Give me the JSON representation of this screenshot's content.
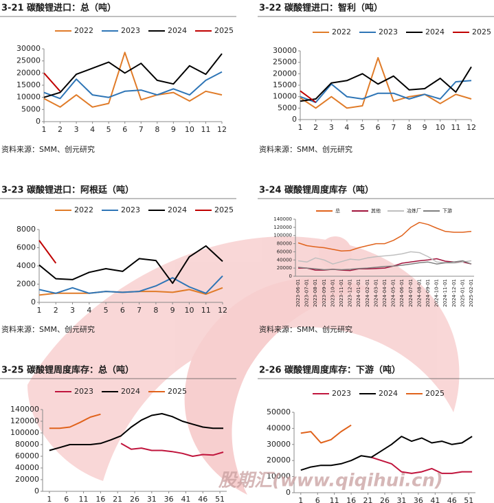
{
  "watermark": "股期汇(www.qiqihui.cn)",
  "chart_data": [
    {
      "type": "line",
      "title": "3-21 碳酸锂进口：总（吨）",
      "source": "资料来源：SMM、创元研究",
      "x": [
        1,
        2,
        3,
        4,
        5,
        6,
        7,
        8,
        9,
        10,
        11,
        12
      ],
      "xlim": [
        1,
        12
      ],
      "xticks": [
        1,
        2,
        3,
        4,
        5,
        6,
        7,
        8,
        9,
        10,
        11,
        12
      ],
      "ylim": [
        0,
        30000
      ],
      "yticks": [
        0,
        5000,
        10000,
        15000,
        20000,
        25000,
        30000
      ],
      "series": [
        {
          "name": "2022",
          "color": "#e07b28",
          "values": [
            9500,
            6000,
            11000,
            6000,
            7500,
            28500,
            9000,
            11000,
            12000,
            8500,
            12500,
            11000
          ]
        },
        {
          "name": "2023",
          "color": "#2e75b6",
          "values": [
            12000,
            9500,
            17500,
            11000,
            10000,
            12500,
            13000,
            11000,
            13500,
            11000,
            17000,
            20500
          ]
        },
        {
          "name": "2024",
          "color": "#000000",
          "values": [
            10000,
            12000,
            19500,
            22000,
            24500,
            20000,
            24000,
            17000,
            15500,
            23000,
            19500,
            28000
          ]
        },
        {
          "name": "2025",
          "color": "#c00000",
          "values": [
            20000,
            12500,
            null,
            null,
            null,
            null,
            null,
            null,
            null,
            null,
            null,
            null
          ]
        }
      ]
    },
    {
      "type": "line",
      "title": "3-22 碳酸锂进口：智利（吨）",
      "source": "资料来源：SMM、创元研究",
      "x": [
        1,
        2,
        3,
        4,
        5,
        6,
        7,
        8,
        9,
        10,
        11,
        12
      ],
      "xlim": [
        1,
        12
      ],
      "xticks": [
        1,
        2,
        3,
        4,
        5,
        6,
        7,
        8,
        9,
        10,
        11,
        12
      ],
      "ylim": [
        0,
        30000
      ],
      "yticks": [
        0,
        5000,
        10000,
        15000,
        20000,
        25000,
        30000
      ],
      "series": [
        {
          "name": "2022",
          "color": "#e07b28",
          "values": [
            9500,
            5000,
            10000,
            5000,
            6000,
            27000,
            8000,
            10000,
            11000,
            7000,
            11000,
            9000
          ]
        },
        {
          "name": "2023",
          "color": "#2e75b6",
          "values": [
            10000,
            7500,
            15500,
            10000,
            9000,
            11500,
            11500,
            9000,
            11000,
            9000,
            16500,
            17000
          ]
        },
        {
          "name": "2024",
          "color": "#000000",
          "values": [
            8000,
            9000,
            16000,
            17000,
            20000,
            15500,
            19000,
            13000,
            13500,
            18000,
            12000,
            23000
          ]
        },
        {
          "name": "2025",
          "color": "#c00000",
          "values": [
            12500,
            7500,
            null,
            null,
            null,
            null,
            null,
            null,
            null,
            null,
            null,
            null
          ]
        }
      ]
    },
    {
      "type": "line",
      "title": "3-23 碳酸锂进口：阿根廷（吨）",
      "source": "资料来源：SMM、创元研究",
      "x": [
        1,
        2,
        3,
        4,
        5,
        6,
        7,
        8,
        9,
        10,
        11,
        12
      ],
      "xlim": [
        1,
        12
      ],
      "xticks": [
        1,
        2,
        3,
        4,
        5,
        6,
        7,
        8,
        9,
        10,
        11,
        12
      ],
      "ylim": [
        0,
        8000
      ],
      "yticks": [
        0,
        2000,
        4000,
        6000,
        8000
      ],
      "series": [
        {
          "name": "2022",
          "color": "#e07b28",
          "values": [
            800,
            1000,
            1000,
            1000,
            1200,
            1100,
            1200,
            1200,
            1100,
            1400,
            900,
            1600
          ]
        },
        {
          "name": "2023",
          "color": "#2e75b6",
          "values": [
            1400,
            1000,
            1600,
            1000,
            1200,
            1100,
            1200,
            1800,
            2700,
            1700,
            1000,
            2900
          ]
        },
        {
          "name": "2024",
          "color": "#000000",
          "values": [
            4100,
            2600,
            2500,
            3300,
            3700,
            3400,
            4800,
            4600,
            2100,
            5000,
            6200,
            4500
          ]
        },
        {
          "name": "2025",
          "color": "#c00000",
          "values": [
            6800,
            4300,
            null,
            null,
            null,
            null,
            null,
            null,
            null,
            null,
            null,
            null
          ]
        }
      ]
    },
    {
      "type": "line",
      "title": "3-24 碳酸锂周度库存（吨）",
      "source": "资料来源：SMM、创元研究",
      "categories": [
        "2023-06-01",
        "2023-07-01",
        "2023-08-01",
        "2023-09-01",
        "2023-10-01",
        "2023-11-01",
        "2023-12-01",
        "2024-01-01",
        "2024-02-01",
        "2024-03-01",
        "2024-04-01",
        "2024-05-01",
        "2024-06-01",
        "2024-07-01",
        "2024-08-01",
        "2024-09-01",
        "2024-10-01",
        "2024-11-01",
        "2024-12-01",
        "2025-01-01",
        "2025-02-01"
      ],
      "ylim": [
        0,
        140000
      ],
      "yticks": [
        0,
        20000,
        40000,
        60000,
        80000,
        100000,
        120000,
        140000
      ],
      "series": [
        {
          "name": "总",
          "color": "#e0621b",
          "values": [
            82000,
            75000,
            72000,
            70000,
            66000,
            62000,
            63000,
            70000,
            75000,
            80000,
            80000,
            88000,
            100000,
            120000,
            132000,
            127000,
            118000,
            110000,
            108000,
            108000,
            110000
          ]
        },
        {
          "name": "其他",
          "color": "#a0123a",
          "values": [
            20000,
            20000,
            15000,
            15000,
            17000,
            15000,
            14000,
            18000,
            18000,
            19000,
            20000,
            25000,
            32000,
            35000,
            38000,
            40000,
            43000,
            37000,
            35000,
            35000,
            30000
          ]
        },
        {
          "name": "冶炼厂",
          "color": "#bfbfbf",
          "values": [
            38000,
            35000,
            45000,
            40000,
            30000,
            36000,
            42000,
            40000,
            45000,
            48000,
            50000,
            52000,
            55000,
            60000,
            58000,
            48000,
            35000,
            33000,
            32000,
            35000,
            38000
          ]
        },
        {
          "name": "下游",
          "color": "#7f7f7f",
          "values": [
            22000,
            20000,
            18000,
            16000,
            17000,
            16000,
            17000,
            19000,
            20000,
            22000,
            24000,
            25000,
            27000,
            30000,
            33000,
            35000,
            30000,
            33000,
            35000,
            38000,
            30000
          ]
        }
      ]
    },
    {
      "type": "line",
      "title": "3-25 碳酸锂周度库存：总（吨）",
      "x": [
        1,
        4,
        7,
        10,
        13,
        16,
        19,
        22,
        25,
        28,
        31,
        34,
        37,
        40,
        43,
        46,
        49,
        52
      ],
      "xlim": [
        -1,
        53
      ],
      "xticks": [
        1,
        6,
        11,
        16,
        21,
        26,
        31,
        36,
        41,
        46,
        51
      ],
      "ylim": [
        0,
        140000
      ],
      "yticks": [
        0,
        20000,
        40000,
        60000,
        80000,
        100000,
        120000,
        140000
      ],
      "series": [
        {
          "name": "2023",
          "color": "#c0143c",
          "values": [
            null,
            null,
            null,
            null,
            null,
            null,
            null,
            82000,
            72000,
            74000,
            70000,
            70000,
            68000,
            65000,
            60000,
            63000,
            62000,
            67000
          ]
        },
        {
          "name": "2024",
          "color": "#000000",
          "values": [
            70000,
            75000,
            80000,
            80000,
            80000,
            82000,
            88000,
            95000,
            110000,
            122000,
            130000,
            133000,
            128000,
            120000,
            115000,
            110000,
            108000,
            108000
          ]
        },
        {
          "name": "2025",
          "color": "#e0621b",
          "values": [
            108000,
            108000,
            110000,
            118000,
            127000,
            132000,
            null,
            null,
            null,
            null,
            null,
            null,
            null,
            null,
            null,
            null,
            null,
            null
          ]
        }
      ]
    },
    {
      "type": "line",
      "title": "2-26 碳酸锂周度库存：下游（吨）",
      "x": [
        1,
        4,
        7,
        10,
        13,
        16,
        19,
        22,
        25,
        28,
        31,
        34,
        37,
        40,
        43,
        46,
        49,
        52
      ],
      "xlim": [
        -1,
        53
      ],
      "xticks": [
        1,
        6,
        11,
        16,
        21,
        26,
        31,
        36,
        41,
        46,
        51
      ],
      "ylim": [
        0,
        50000
      ],
      "yticks": [
        0,
        10000,
        20000,
        30000,
        40000,
        50000
      ],
      "series": [
        {
          "name": "2023",
          "color": "#c0143c",
          "values": [
            null,
            null,
            null,
            null,
            null,
            null,
            null,
            22000,
            20000,
            18000,
            13000,
            12000,
            13000,
            15000,
            12000,
            12000,
            13000,
            13000
          ]
        },
        {
          "name": "2024",
          "color": "#000000",
          "values": [
            14000,
            16000,
            17000,
            17000,
            18000,
            20000,
            23000,
            22000,
            26000,
            30000,
            35000,
            32000,
            34000,
            31000,
            32000,
            30000,
            31000,
            35000
          ]
        },
        {
          "name": "2025",
          "color": "#e0621b",
          "values": [
            37000,
            38000,
            31000,
            33000,
            38000,
            42000,
            null,
            null,
            null,
            null,
            null,
            null,
            null,
            null,
            null,
            null,
            null,
            null
          ]
        }
      ]
    }
  ]
}
